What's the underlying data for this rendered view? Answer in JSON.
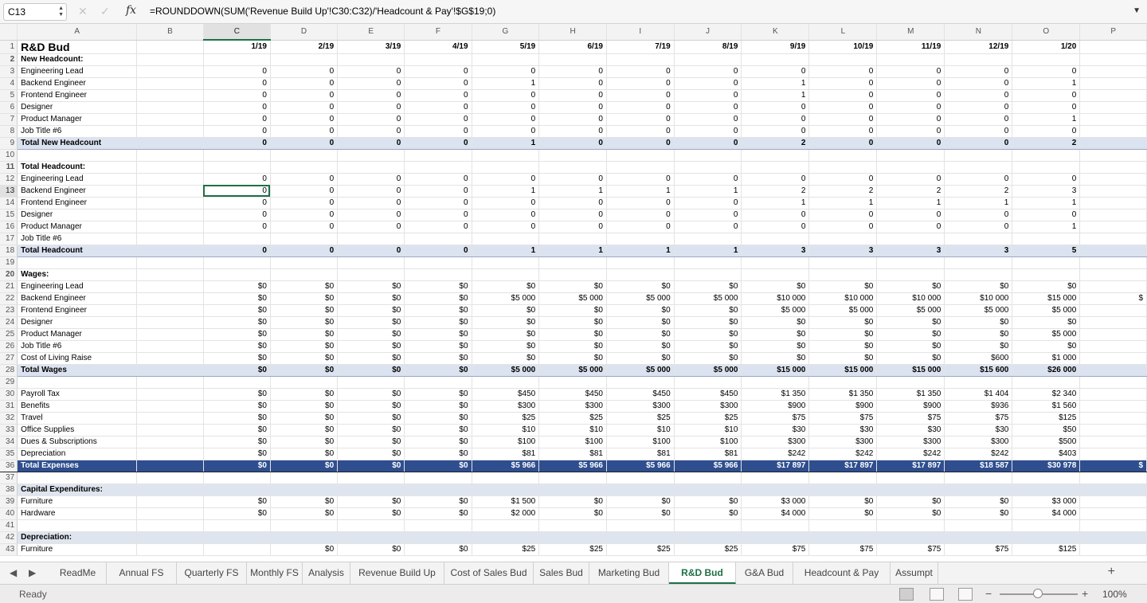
{
  "formula_bar": {
    "cell_ref": "C13",
    "formula": "=ROUNDDOWN(SUM('Revenue Build Up'!C30:C32)/'Headcount & Pay'!$G$19;0)",
    "fx_label": "fx"
  },
  "columns": [
    "A",
    "B",
    "C",
    "D",
    "E",
    "F",
    "G",
    "H",
    "I",
    "J",
    "K",
    "L",
    "M",
    "N",
    "O",
    "P"
  ],
  "active_column": "C",
  "rows": [
    {
      "n": "1",
      "style": "title",
      "cells": [
        "R&D Bud",
        "",
        "1/19",
        "2/19",
        "3/19",
        "4/19",
        "5/19",
        "6/19",
        "7/19",
        "8/19",
        "9/19",
        "10/19",
        "11/19",
        "12/19",
        "1/20",
        ""
      ]
    },
    {
      "n": "2",
      "style": "bold",
      "cells": [
        "New Headcount:",
        "",
        "",
        "",
        "",
        "",
        "",
        "",
        "",
        "",
        "",
        "",
        "",
        "",
        "",
        ""
      ]
    },
    {
      "n": "3",
      "style": "",
      "cells": [
        "Engineering Lead",
        "",
        "0",
        "0",
        "0",
        "0",
        "0",
        "0",
        "0",
        "0",
        "0",
        "0",
        "0",
        "0",
        "0",
        ""
      ]
    },
    {
      "n": "4",
      "style": "",
      "cells": [
        "Backend Engineer",
        "",
        "0",
        "0",
        "0",
        "0",
        "1",
        "0",
        "0",
        "0",
        "1",
        "0",
        "0",
        "0",
        "1",
        ""
      ]
    },
    {
      "n": "5",
      "style": "",
      "cells": [
        "Frontend Engineer",
        "",
        "0",
        "0",
        "0",
        "0",
        "0",
        "0",
        "0",
        "0",
        "1",
        "0",
        "0",
        "0",
        "0",
        ""
      ]
    },
    {
      "n": "6",
      "style": "",
      "cells": [
        "Designer",
        "",
        "0",
        "0",
        "0",
        "0",
        "0",
        "0",
        "0",
        "0",
        "0",
        "0",
        "0",
        "0",
        "0",
        ""
      ]
    },
    {
      "n": "7",
      "style": "",
      "cells": [
        "Product Manager",
        "",
        "0",
        "0",
        "0",
        "0",
        "0",
        "0",
        "0",
        "0",
        "0",
        "0",
        "0",
        "0",
        "1",
        ""
      ]
    },
    {
      "n": "8",
      "style": "",
      "cells": [
        "Job Title #6",
        "",
        "0",
        "0",
        "0",
        "0",
        "0",
        "0",
        "0",
        "0",
        "0",
        "0",
        "0",
        "0",
        "0",
        ""
      ]
    },
    {
      "n": "9",
      "style": "total",
      "cells": [
        "Total New Headcount",
        "",
        "0",
        "0",
        "0",
        "0",
        "1",
        "0",
        "0",
        "0",
        "2",
        "0",
        "0",
        "0",
        "2",
        ""
      ]
    },
    {
      "n": "10",
      "style": "",
      "cells": [
        "",
        "",
        "",
        "",
        "",
        "",
        "",
        "",
        "",
        "",
        "",
        "",
        "",
        "",
        "",
        ""
      ]
    },
    {
      "n": "11",
      "style": "bold",
      "cells": [
        "Total Headcount:",
        "",
        "",
        "",
        "",
        "",
        "",
        "",
        "",
        "",
        "",
        "",
        "",
        "",
        "",
        ""
      ]
    },
    {
      "n": "12",
      "style": "",
      "cells": [
        "Engineering Lead",
        "",
        "0",
        "0",
        "0",
        "0",
        "0",
        "0",
        "0",
        "0",
        "0",
        "0",
        "0",
        "0",
        "0",
        ""
      ]
    },
    {
      "n": "13",
      "style": "activerow",
      "cells": [
        "Backend Engineer",
        "",
        "0",
        "0",
        "0",
        "0",
        "1",
        "1",
        "1",
        "1",
        "2",
        "2",
        "2",
        "2",
        "3",
        ""
      ]
    },
    {
      "n": "14",
      "style": "",
      "cells": [
        "Frontend Engineer",
        "",
        "0",
        "0",
        "0",
        "0",
        "0",
        "0",
        "0",
        "0",
        "1",
        "1",
        "1",
        "1",
        "1",
        ""
      ]
    },
    {
      "n": "15",
      "style": "",
      "cells": [
        "Designer",
        "",
        "0",
        "0",
        "0",
        "0",
        "0",
        "0",
        "0",
        "0",
        "0",
        "0",
        "0",
        "0",
        "0",
        ""
      ]
    },
    {
      "n": "16",
      "style": "",
      "cells": [
        "Product Manager",
        "",
        "0",
        "0",
        "0",
        "0",
        "0",
        "0",
        "0",
        "0",
        "0",
        "0",
        "0",
        "0",
        "1",
        ""
      ]
    },
    {
      "n": "17",
      "style": "",
      "cells": [
        "Job Title #6",
        "",
        "",
        "",
        "",
        "",
        "",
        "",
        "",
        "",
        "",
        "",
        "",
        "",
        "",
        ""
      ]
    },
    {
      "n": "18",
      "style": "total",
      "cells": [
        "Total Headcount",
        "",
        "0",
        "0",
        "0",
        "0",
        "1",
        "1",
        "1",
        "1",
        "3",
        "3",
        "3",
        "3",
        "5",
        ""
      ]
    },
    {
      "n": "19",
      "style": "",
      "cells": [
        "",
        "",
        "",
        "",
        "",
        "",
        "",
        "",
        "",
        "",
        "",
        "",
        "",
        "",
        "",
        ""
      ]
    },
    {
      "n": "20",
      "style": "bold",
      "cells": [
        "Wages:",
        "",
        "",
        "",
        "",
        "",
        "",
        "",
        "",
        "",
        "",
        "",
        "",
        "",
        "",
        ""
      ]
    },
    {
      "n": "21",
      "style": "",
      "cells": [
        "Engineering Lead",
        "",
        "$0",
        "$0",
        "$0",
        "$0",
        "$0",
        "$0",
        "$0",
        "$0",
        "$0",
        "$0",
        "$0",
        "$0",
        "$0",
        ""
      ]
    },
    {
      "n": "22",
      "style": "",
      "cells": [
        "Backend Engineer",
        "",
        "$0",
        "$0",
        "$0",
        "$0",
        "$5 000",
        "$5 000",
        "$5 000",
        "$5 000",
        "$10 000",
        "$10 000",
        "$10 000",
        "$10 000",
        "$15 000",
        "$"
      ]
    },
    {
      "n": "23",
      "style": "",
      "cells": [
        "Frontend Engineer",
        "",
        "$0",
        "$0",
        "$0",
        "$0",
        "$0",
        "$0",
        "$0",
        "$0",
        "$5 000",
        "$5 000",
        "$5 000",
        "$5 000",
        "$5 000",
        ""
      ]
    },
    {
      "n": "24",
      "style": "",
      "cells": [
        "Designer",
        "",
        "$0",
        "$0",
        "$0",
        "$0",
        "$0",
        "$0",
        "$0",
        "$0",
        "$0",
        "$0",
        "$0",
        "$0",
        "$0",
        ""
      ]
    },
    {
      "n": "25",
      "style": "",
      "cells": [
        "Product Manager",
        "",
        "$0",
        "$0",
        "$0",
        "$0",
        "$0",
        "$0",
        "$0",
        "$0",
        "$0",
        "$0",
        "$0",
        "$0",
        "$5 000",
        ""
      ]
    },
    {
      "n": "26",
      "style": "",
      "cells": [
        "Job Title #6",
        "",
        "$0",
        "$0",
        "$0",
        "$0",
        "$0",
        "$0",
        "$0",
        "$0",
        "$0",
        "$0",
        "$0",
        "$0",
        "$0",
        ""
      ]
    },
    {
      "n": "27",
      "style": "",
      "cells": [
        "Cost of Living Raise",
        "",
        "$0",
        "$0",
        "$0",
        "$0",
        "$0",
        "$0",
        "$0",
        "$0",
        "$0",
        "$0",
        "$0",
        "$600",
        "$1 000",
        ""
      ]
    },
    {
      "n": "28",
      "style": "total",
      "cells": [
        "Total Wages",
        "",
        "$0",
        "$0",
        "$0",
        "$0",
        "$5 000",
        "$5 000",
        "$5 000",
        "$5 000",
        "$15 000",
        "$15 000",
        "$15 000",
        "$15 600",
        "$26 000",
        ""
      ]
    },
    {
      "n": "29",
      "style": "",
      "cells": [
        "",
        "",
        "",
        "",
        "",
        "",
        "",
        "",
        "",
        "",
        "",
        "",
        "",
        "",
        "",
        ""
      ]
    },
    {
      "n": "30",
      "style": "",
      "cells": [
        "Payroll Tax",
        "",
        "$0",
        "$0",
        "$0",
        "$0",
        "$450",
        "$450",
        "$450",
        "$450",
        "$1 350",
        "$1 350",
        "$1 350",
        "$1 404",
        "$2 340",
        ""
      ]
    },
    {
      "n": "31",
      "style": "",
      "cells": [
        "Benefits",
        "",
        "$0",
        "$0",
        "$0",
        "$0",
        "$300",
        "$300",
        "$300",
        "$300",
        "$900",
        "$900",
        "$900",
        "$936",
        "$1 560",
        ""
      ]
    },
    {
      "n": "32",
      "style": "",
      "cells": [
        "Travel",
        "",
        "$0",
        "$0",
        "$0",
        "$0",
        "$25",
        "$25",
        "$25",
        "$25",
        "$75",
        "$75",
        "$75",
        "$75",
        "$125",
        ""
      ]
    },
    {
      "n": "33",
      "style": "",
      "cells": [
        "Office Supplies",
        "",
        "$0",
        "$0",
        "$0",
        "$0",
        "$10",
        "$10",
        "$10",
        "$10",
        "$30",
        "$30",
        "$30",
        "$30",
        "$50",
        ""
      ]
    },
    {
      "n": "34",
      "style": "",
      "cells": [
        "Dues & Subscriptions",
        "",
        "$0",
        "$0",
        "$0",
        "$0",
        "$100",
        "$100",
        "$100",
        "$100",
        "$300",
        "$300",
        "$300",
        "$300",
        "$500",
        ""
      ]
    },
    {
      "n": "35",
      "style": "",
      "cells": [
        "Depreciation",
        "",
        "$0",
        "$0",
        "$0",
        "$0",
        "$81",
        "$81",
        "$81",
        "$81",
        "$242",
        "$242",
        "$242",
        "$242",
        "$403",
        ""
      ]
    },
    {
      "n": "36",
      "style": "grand",
      "cells": [
        "Total Expenses",
        "",
        "$0",
        "$0",
        "$0",
        "$0",
        "$5 966",
        "$5 966",
        "$5 966",
        "$5 966",
        "$17 897",
        "$17 897",
        "$17 897",
        "$18 587",
        "$30 978",
        "$"
      ]
    },
    {
      "n": "37",
      "style": "",
      "cells": [
        "",
        "",
        "",
        "",
        "",
        "",
        "",
        "",
        "",
        "",
        "",
        "",
        "",
        "",
        "",
        ""
      ]
    },
    {
      "n": "38",
      "style": "shade",
      "cells": [
        "Capital Expenditures:",
        "",
        "",
        "",
        "",
        "",
        "",
        "",
        "",
        "",
        "",
        "",
        "",
        "",
        "",
        ""
      ]
    },
    {
      "n": "39",
      "style": "",
      "cells": [
        "Furniture",
        "",
        "$0",
        "$0",
        "$0",
        "$0",
        "$1 500",
        "$0",
        "$0",
        "$0",
        "$3 000",
        "$0",
        "$0",
        "$0",
        "$3 000",
        ""
      ]
    },
    {
      "n": "40",
      "style": "",
      "cells": [
        "Hardware",
        "",
        "$0",
        "$0",
        "$0",
        "$0",
        "$2 000",
        "$0",
        "$0",
        "$0",
        "$4 000",
        "$0",
        "$0",
        "$0",
        "$4 000",
        ""
      ]
    },
    {
      "n": "41",
      "style": "",
      "cells": [
        "",
        "",
        "",
        "",
        "",
        "",
        "",
        "",
        "",
        "",
        "",
        "",
        "",
        "",
        "",
        ""
      ]
    },
    {
      "n": "42",
      "style": "shade",
      "cells": [
        "Depreciation:",
        "",
        "",
        "",
        "",
        "",
        "",
        "",
        "",
        "",
        "",
        "",
        "",
        "",
        "",
        ""
      ]
    },
    {
      "n": "43",
      "style": "",
      "cells": [
        "Furniture",
        "",
        "",
        "$0",
        "$0",
        "$0",
        "$25",
        "$25",
        "$25",
        "$25",
        "$75",
        "$75",
        "$75",
        "$75",
        "$125",
        ""
      ]
    }
  ],
  "sheet_tabs": [
    "ReadMe",
    "Annual FS",
    "Quarterly FS",
    "Monthly FS",
    "Analysis",
    "Revenue Build Up",
    "Cost of Sales Bud",
    "Sales Bud",
    "Marketing Bud",
    "R&D Bud",
    "G&A Bud",
    "Headcount & Pay",
    "Assumpt"
  ],
  "active_tab": "R&D Bud",
  "status": {
    "text": "Ready",
    "zoom": "100%"
  }
}
